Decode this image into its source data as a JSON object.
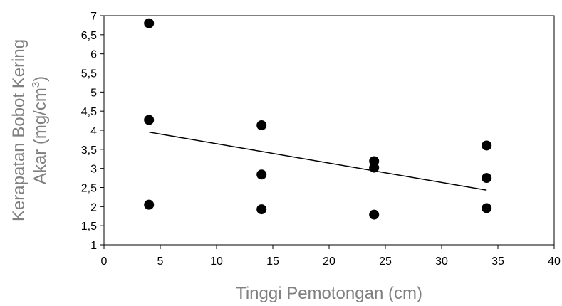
{
  "chart_data": {
    "type": "scatter",
    "title": "",
    "xlabel": "Tinggi Pemotongan (cm)",
    "ylabel_line1": "Kerapatan Bobot Kering",
    "ylabel_line2_prefix": "Akar (mg/cm",
    "ylabel_line2_sup": "3",
    "ylabel_line2_suffix": ")",
    "xlim": [
      0,
      40
    ],
    "ylim": [
      1,
      7
    ],
    "x_ticks": [
      0,
      5,
      10,
      15,
      20,
      25,
      30,
      35,
      40
    ],
    "x_tick_labels": [
      "0",
      "5",
      "10",
      "15",
      "20",
      "25",
      "30",
      "35",
      "40"
    ],
    "y_ticks": [
      1,
      1.5,
      2,
      2.5,
      3,
      3.5,
      4,
      4.5,
      5,
      5.5,
      6,
      6.5,
      7
    ],
    "y_tick_labels": [
      "1",
      "1,5",
      "2",
      "2,5",
      "3",
      "3,5",
      "4",
      "4,5",
      "5",
      "5,5",
      "6",
      "6,5",
      "7"
    ],
    "grid": false,
    "legend": "none",
    "points": [
      {
        "x": 4,
        "y": 6.8
      },
      {
        "x": 4,
        "y": 4.27
      },
      {
        "x": 4,
        "y": 2.05
      },
      {
        "x": 14,
        "y": 4.13
      },
      {
        "x": 14,
        "y": 2.84
      },
      {
        "x": 14,
        "y": 1.93
      },
      {
        "x": 24,
        "y": 3.19
      },
      {
        "x": 24,
        "y": 3.02
      },
      {
        "x": 24,
        "y": 1.79
      },
      {
        "x": 34,
        "y": 3.6
      },
      {
        "x": 34,
        "y": 2.75
      },
      {
        "x": 34,
        "y": 1.96
      }
    ],
    "trendline": {
      "x": [
        4,
        34
      ],
      "y": [
        3.95,
        2.43
      ]
    },
    "colors": {
      "points": "#000000",
      "trendline": "#000000",
      "axis_title": "#808080"
    }
  }
}
